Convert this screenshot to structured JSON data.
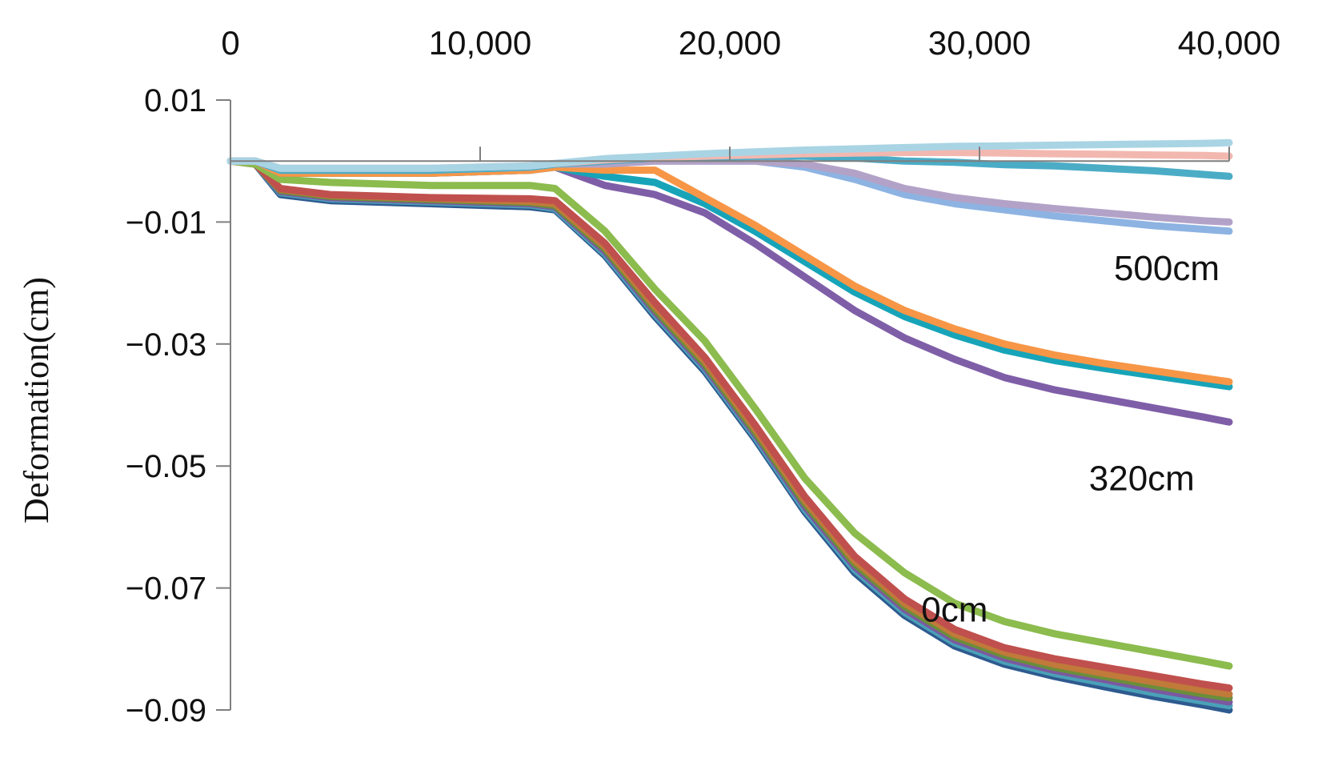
{
  "chart_data": {
    "type": "line",
    "title": "",
    "xlabel": "",
    "ylabel": "Deformation(cm)",
    "xlim": [
      0,
      40000
    ],
    "ylim": [
      -0.09,
      0.01
    ],
    "x_ticks": [
      "0",
      "10,000",
      "20,000",
      "30,000",
      "40,000"
    ],
    "x_tick_values": [
      0,
      10000,
      20000,
      30000,
      40000
    ],
    "y_ticks": [
      "0.01",
      "−0.01",
      "−0.03",
      "−0.05",
      "−0.07",
      "−0.09"
    ],
    "y_tick_values": [
      0.01,
      -0.01,
      -0.03,
      -0.05,
      -0.07,
      -0.09
    ],
    "x_axis_position": "top",
    "grid": false,
    "legend": "none",
    "annotations": [
      {
        "text": "500cm",
        "x": 37500,
        "y": -0.0195
      },
      {
        "text": "320cm",
        "x": 36500,
        "y": -0.054
      },
      {
        "text": "0cm",
        "x": 29000,
        "y": -0.0755
      }
    ],
    "series": [
      {
        "color": "#2e5a8f",
        "x": [
          0,
          1000,
          2000,
          4000,
          8000,
          12000,
          13000,
          15000,
          17000,
          19000,
          21000,
          23000,
          25000,
          27000,
          29000,
          31000,
          33000,
          35000,
          37000,
          39000,
          40000
        ],
        "y": [
          0,
          -0.0005,
          -0.0055,
          -0.0065,
          -0.007,
          -0.0075,
          -0.008,
          -0.0155,
          -0.0255,
          -0.0345,
          -0.0455,
          -0.0575,
          -0.0675,
          -0.0745,
          -0.0795,
          -0.0825,
          -0.0845,
          -0.0862,
          -0.0878,
          -0.0892,
          -0.09
        ]
      },
      {
        "color": "#4aa1b8",
        "x": [
          0,
          1000,
          2000,
          4000,
          8000,
          12000,
          13000,
          15000,
          17000,
          19000,
          21000,
          23000,
          25000,
          27000,
          29000,
          31000,
          33000,
          35000,
          37000,
          39000,
          40000
        ],
        "y": [
          0,
          -0.0005,
          -0.0052,
          -0.0062,
          -0.0067,
          -0.0072,
          -0.0078,
          -0.0152,
          -0.0251,
          -0.0341,
          -0.0451,
          -0.0571,
          -0.067,
          -0.074,
          -0.079,
          -0.082,
          -0.084,
          -0.0856,
          -0.0872,
          -0.0886,
          -0.0893
        ]
      },
      {
        "color": "#7a5aa0",
        "x": [
          0,
          1000,
          2000,
          4000,
          8000,
          12000,
          13000,
          15000,
          17000,
          19000,
          21000,
          23000,
          25000,
          27000,
          29000,
          31000,
          33000,
          35000,
          37000,
          39000,
          40000
        ],
        "y": [
          0,
          -0.0005,
          -0.005,
          -0.006,
          -0.0065,
          -0.007,
          -0.0075,
          -0.0148,
          -0.0247,
          -0.0337,
          -0.0447,
          -0.0566,
          -0.0665,
          -0.0735,
          -0.0785,
          -0.0815,
          -0.0835,
          -0.085,
          -0.0866,
          -0.088,
          -0.0887
        ]
      },
      {
        "color": "#6a8e3a",
        "x": [
          0,
          1000,
          2000,
          4000,
          8000,
          12000,
          13000,
          15000,
          17000,
          19000,
          21000,
          23000,
          25000,
          27000,
          29000,
          31000,
          33000,
          35000,
          37000,
          39000,
          40000
        ],
        "y": [
          0,
          -0.0005,
          -0.0048,
          -0.0058,
          -0.0063,
          -0.0068,
          -0.0073,
          -0.0144,
          -0.0243,
          -0.0333,
          -0.0443,
          -0.0561,
          -0.066,
          -0.073,
          -0.078,
          -0.081,
          -0.083,
          -0.0845,
          -0.086,
          -0.0874,
          -0.088
        ]
      },
      {
        "color": "#c07a3a",
        "x": [
          0,
          1000,
          2000,
          4000,
          8000,
          12000,
          13000,
          15000,
          17000,
          19000,
          21000,
          23000,
          25000,
          27000,
          29000,
          31000,
          33000,
          35000,
          37000,
          39000,
          40000
        ],
        "y": [
          0,
          -0.0005,
          -0.0046,
          -0.0056,
          -0.0061,
          -0.0066,
          -0.007,
          -0.014,
          -0.0238,
          -0.0328,
          -0.0438,
          -0.0556,
          -0.0655,
          -0.0725,
          -0.0775,
          -0.0805,
          -0.0825,
          -0.084,
          -0.0854,
          -0.0868,
          -0.0874
        ]
      },
      {
        "color": "#c0504d",
        "x": [
          0,
          1000,
          2000,
          4000,
          8000,
          12000,
          13000,
          15000,
          17000,
          19000,
          21000,
          23000,
          25000,
          27000,
          29000,
          31000,
          33000,
          35000,
          37000,
          39000,
          40000
        ],
        "y": [
          0,
          -0.0005,
          -0.0045,
          -0.0055,
          -0.006,
          -0.0062,
          -0.0065,
          -0.0135,
          -0.0232,
          -0.0322,
          -0.0432,
          -0.055,
          -0.0648,
          -0.0718,
          -0.0768,
          -0.0798,
          -0.0816,
          -0.083,
          -0.0844,
          -0.0858,
          -0.0864
        ]
      },
      {
        "color": "#8cbb4e",
        "x": [
          0,
          1000,
          2000,
          4000,
          8000,
          12000,
          13000,
          15000,
          17000,
          19000,
          21000,
          23000,
          25000,
          27000,
          29000,
          31000,
          33000,
          35000,
          37000,
          39000,
          40000
        ],
        "y": [
          0,
          -0.0005,
          -0.003,
          -0.0035,
          -0.004,
          -0.004,
          -0.0045,
          -0.0115,
          -0.021,
          -0.0295,
          -0.0405,
          -0.052,
          -0.061,
          -0.0675,
          -0.0725,
          -0.0755,
          -0.0775,
          -0.079,
          -0.0805,
          -0.082,
          -0.0828
        ]
      },
      {
        "color": "#7f5ea8",
        "x": [
          0,
          1000,
          2000,
          4000,
          8000,
          12000,
          13000,
          15000,
          17000,
          19000,
          21000,
          23000,
          25000,
          27000,
          29000,
          31000,
          33000,
          35000,
          37000,
          39000,
          40000
        ],
        "y": [
          0,
          0,
          -0.002,
          -0.002,
          -0.002,
          -0.0015,
          -0.001,
          -0.004,
          -0.0055,
          -0.0085,
          -0.0135,
          -0.019,
          -0.0245,
          -0.029,
          -0.0325,
          -0.0355,
          -0.0375,
          -0.039,
          -0.0405,
          -0.042,
          -0.0428
        ]
      },
      {
        "color": "#17a4b8",
        "x": [
          0,
          1000,
          2000,
          4000,
          8000,
          12000,
          13000,
          15000,
          17000,
          19000,
          21000,
          23000,
          25000,
          27000,
          29000,
          31000,
          33000,
          35000,
          37000,
          39000,
          40000
        ],
        "y": [
          0,
          0,
          -0.002,
          -0.002,
          -0.002,
          -0.0015,
          -0.001,
          -0.0025,
          -0.0035,
          -0.007,
          -0.0115,
          -0.0165,
          -0.0215,
          -0.0255,
          -0.0285,
          -0.031,
          -0.0327,
          -0.034,
          -0.0352,
          -0.0364,
          -0.037
        ]
      },
      {
        "color": "#f79646",
        "x": [
          0,
          1000,
          2000,
          4000,
          8000,
          12000,
          13000,
          15000,
          17000,
          19000,
          21000,
          23000,
          25000,
          27000,
          29000,
          31000,
          33000,
          35000,
          37000,
          39000,
          40000
        ],
        "y": [
          0,
          0,
          -0.002,
          -0.002,
          -0.002,
          -0.0015,
          -0.001,
          -0.0015,
          -0.0015,
          -0.006,
          -0.0105,
          -0.0155,
          -0.0205,
          -0.0245,
          -0.0275,
          -0.03,
          -0.0318,
          -0.0332,
          -0.0344,
          -0.0356,
          -0.0362
        ]
      },
      {
        "color": "#8db3e2",
        "x": [
          0,
          1000,
          2000,
          4000,
          8000,
          12000,
          13000,
          15000,
          17000,
          19000,
          21000,
          23000,
          25000,
          27000,
          29000,
          31000,
          33000,
          35000,
          37000,
          39000,
          40000
        ],
        "y": [
          0,
          0,
          -0.0015,
          -0.0015,
          -0.0015,
          -0.001,
          -0.0005,
          -0.0005,
          0,
          0,
          0,
          -0.001,
          -0.003,
          -0.0055,
          -0.007,
          -0.008,
          -0.009,
          -0.0098,
          -0.0106,
          -0.0112,
          -0.0115
        ]
      },
      {
        "color": "#b3a2c7",
        "x": [
          0,
          1000,
          2000,
          4000,
          8000,
          12000,
          13000,
          15000,
          17000,
          19000,
          21000,
          23000,
          25000,
          27000,
          29000,
          31000,
          33000,
          35000,
          37000,
          39000,
          40000
        ],
        "y": [
          0,
          0,
          -0.0015,
          -0.0015,
          -0.0015,
          -0.001,
          -0.0005,
          -0.0005,
          0,
          0,
          0,
          -0.0005,
          -0.002,
          -0.0045,
          -0.006,
          -0.007,
          -0.0078,
          -0.0085,
          -0.0092,
          -0.0098,
          -0.01
        ]
      },
      {
        "color": "#4bacc6",
        "x": [
          0,
          1000,
          2000,
          4000,
          8000,
          12000,
          13000,
          15000,
          17000,
          19000,
          21000,
          23000,
          25000,
          27000,
          29000,
          31000,
          33000,
          35000,
          37000,
          39000,
          40000
        ],
        "y": [
          0,
          0,
          -0.0015,
          -0.0015,
          -0.0015,
          -0.001,
          -0.0005,
          0,
          0.0005,
          0.0005,
          0.0008,
          0.0008,
          0.0005,
          0,
          -0.0002,
          -0.0006,
          -0.0008,
          -0.0012,
          -0.0016,
          -0.0022,
          -0.0025
        ]
      },
      {
        "color": "#f2b8b0",
        "x": [
          0,
          1000,
          2000,
          4000,
          8000,
          12000,
          13000,
          15000,
          17000,
          19000,
          21000,
          23000,
          25000,
          27000,
          29000,
          31000,
          33000,
          35000,
          37000,
          39000,
          40000
        ],
        "y": [
          0,
          0,
          -0.0012,
          -0.0012,
          -0.0012,
          -0.0008,
          -0.0004,
          0.0002,
          0.0006,
          0.0008,
          0.001,
          0.0012,
          0.0013,
          0.0014,
          0.0014,
          0.0013,
          0.0012,
          0.0011,
          0.001,
          0.0009,
          0.0008
        ]
      },
      {
        "color": "#a9d4e4",
        "x": [
          0,
          1000,
          2000,
          4000,
          8000,
          12000,
          13000,
          15000,
          17000,
          19000,
          21000,
          23000,
          25000,
          27000,
          29000,
          31000,
          33000,
          35000,
          37000,
          39000,
          40000
        ],
        "y": [
          0,
          0,
          -0.0012,
          -0.0012,
          -0.0012,
          -0.0008,
          -0.0004,
          0.0004,
          0.0008,
          0.0012,
          0.0015,
          0.0018,
          0.002,
          0.0022,
          0.0024,
          0.0025,
          0.0026,
          0.0027,
          0.0028,
          0.0029,
          0.003
        ]
      }
    ]
  }
}
